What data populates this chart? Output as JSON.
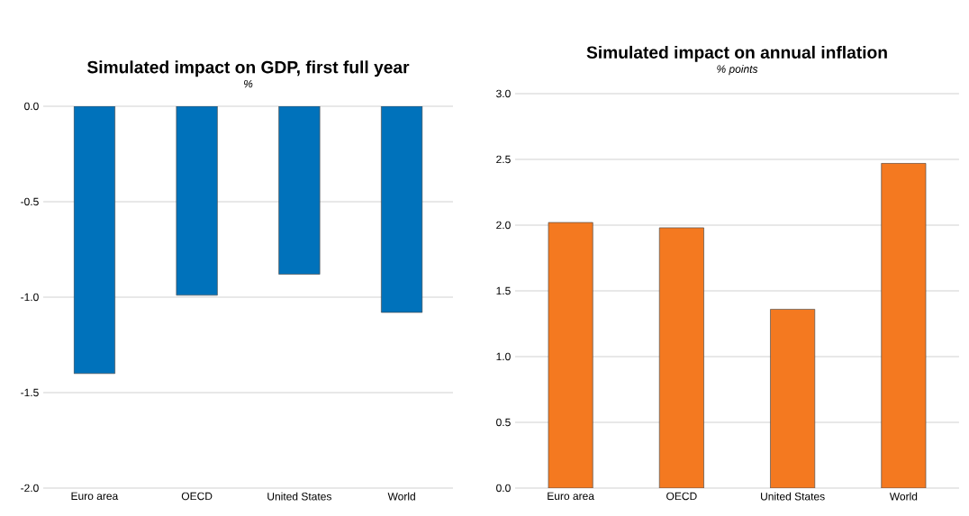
{
  "chart_data": [
    {
      "type": "bar",
      "title": "Simulated impact on GDP, first full year",
      "subtitle": "%",
      "categories": [
        "Euro area",
        "OECD",
        "United States",
        "World"
      ],
      "values": [
        -1.4,
        -0.99,
        -0.88,
        -1.08
      ],
      "color": "#0072bb",
      "ylim": [
        -2.0,
        0.0
      ],
      "yticks": [
        {
          "value": -2.0,
          "label": "-2.0"
        },
        {
          "value": -1.5,
          "label": "-1.5"
        },
        {
          "value": -1.0,
          "label": "-1.0"
        },
        {
          "value": -0.5,
          "label": "-0.5"
        },
        {
          "value": 0.0,
          "label": "0.0"
        }
      ],
      "grid": "y"
    },
    {
      "type": "bar",
      "title": "Simulated impact on annual inflation",
      "subtitle": "% points",
      "categories": [
        "Euro area",
        "OECD",
        "United States",
        "World"
      ],
      "values": [
        2.02,
        1.98,
        1.36,
        2.47
      ],
      "color": "#f47920",
      "ylim": [
        0.0,
        3.0
      ],
      "yticks": [
        {
          "value": 0.0,
          "label": "0.0"
        },
        {
          "value": 0.5,
          "label": "0.5"
        },
        {
          "value": 1.0,
          "label": "1.0"
        },
        {
          "value": 1.5,
          "label": "1.5"
        },
        {
          "value": 2.0,
          "label": "2.0"
        },
        {
          "value": 2.5,
          "label": "2.5"
        },
        {
          "value": 3.0,
          "label": "3.0"
        }
      ],
      "grid": "y"
    }
  ]
}
